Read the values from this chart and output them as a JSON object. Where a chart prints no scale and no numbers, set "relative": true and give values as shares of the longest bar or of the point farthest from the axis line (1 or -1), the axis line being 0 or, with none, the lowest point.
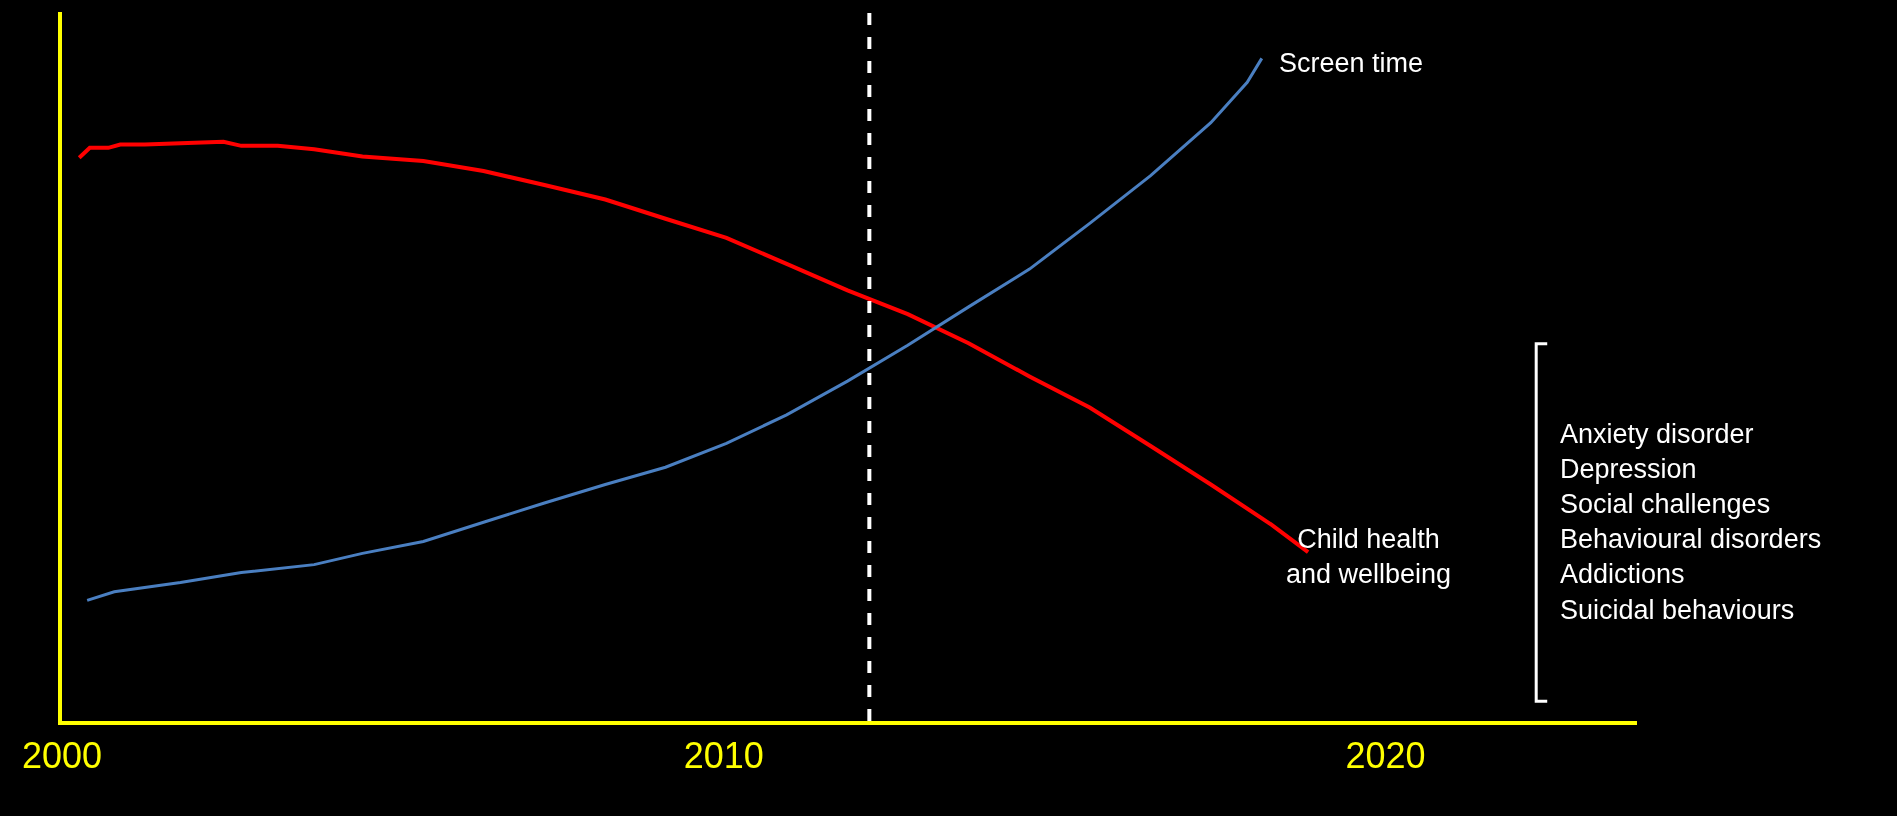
{
  "chart_data": {
    "type": "line",
    "relative": true,
    "xlim": [
      2000,
      2023.8
    ],
    "xticks": [
      2000,
      2010,
      2020
    ],
    "grid": false,
    "legend": false,
    "marker": "none",
    "line_style": "solid",
    "series": [
      {
        "name": "Child health\nand wellbeing",
        "color": "#ff0000",
        "x": [
          2000.26,
          2000.42,
          2000.7,
          2000.88,
          2001.25,
          2001.79,
          2002.44,
          2002.71,
          2003.26,
          2003.81,
          2004.54,
          2005.46,
          2006.37,
          2007.29,
          2008.21,
          2009.12,
          2010.04,
          2010.95,
          2011.87,
          2012.78,
          2013.7,
          2014.62,
          2015.53,
          2016.45,
          2017.36,
          2018.28,
          2018.83
        ],
        "values": [
          0.85,
          0.865,
          0.865,
          0.87,
          0.87,
          0.872,
          0.874,
          0.868,
          0.868,
          0.863,
          0.852,
          0.845,
          0.83,
          0.809,
          0.787,
          0.758,
          0.729,
          0.69,
          0.65,
          0.614,
          0.57,
          0.52,
          0.473,
          0.415,
          0.357,
          0.296,
          0.255
        ]
      },
      {
        "name": "Screen time",
        "color": "#4a7fc1",
        "x": [
          2000.38,
          2000.79,
          2001.79,
          2002.71,
          2003.81,
          2004.54,
          2005.46,
          2006.37,
          2007.29,
          2008.21,
          2009.12,
          2010.04,
          2010.95,
          2011.87,
          2012.78,
          2013.7,
          2014.62,
          2015.53,
          2016.45,
          2017.36,
          2017.91,
          2018.13
        ],
        "values": [
          0.182,
          0.195,
          0.209,
          0.224,
          0.236,
          0.253,
          0.271,
          0.3,
          0.329,
          0.357,
          0.383,
          0.419,
          0.462,
          0.513,
          0.567,
          0.625,
          0.682,
          0.751,
          0.823,
          0.903,
          0.964,
          1
        ]
      }
    ],
    "ref_lines": [
      {
        "axis": "x",
        "value": 2012.2,
        "color": "#ffffff",
        "line_style": "dashed"
      }
    ],
    "annotations": [
      "Anxiety disorder\nDepression\nSocial challenges\nBehavioural disorders\nAddictions\nSuicidal behaviours"
    ]
  }
}
